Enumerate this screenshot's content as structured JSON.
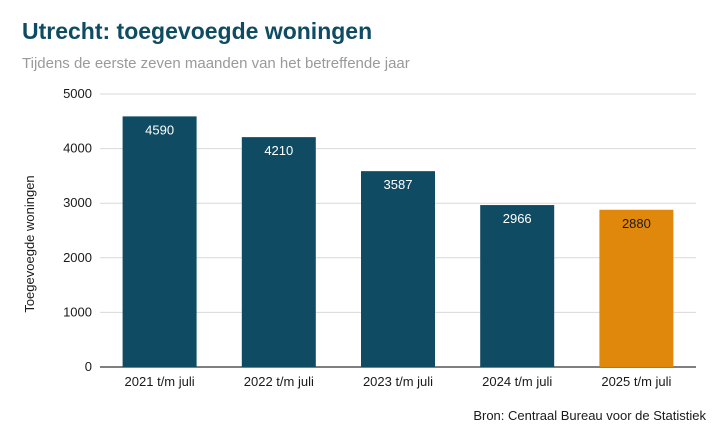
{
  "header": {
    "title": "Utrecht: toegevoegde woningen",
    "subtitle": "Tijdens de eerste zeven maanden van het betreffende jaar"
  },
  "footer": {
    "source": "Bron: Centraal Bureau voor de Statistiek"
  },
  "chart_data": {
    "type": "bar",
    "title": "Utrecht: toegevoegde woningen",
    "subtitle": "Tijdens de eerste zeven maanden van het betreffende jaar",
    "xlabel": "",
    "ylabel": "Toegevoegde woningen",
    "categories": [
      "2021 t/m juli",
      "2022 t/m juli",
      "2023 t/m juli",
      "2024 t/m juli",
      "2025 t/m juli"
    ],
    "values": [
      4590,
      4210,
      3587,
      2966,
      2880
    ],
    "data_labels": [
      "4590",
      "4210",
      "3587",
      "2966",
      "2880"
    ],
    "bar_colors": [
      "#0f4c63",
      "#0f4c63",
      "#0f4c63",
      "#0f4c63",
      "#e0880b"
    ],
    "ylim": [
      0,
      5000
    ],
    "yticks": [
      0,
      1000,
      2000,
      3000,
      4000,
      5000
    ],
    "grid": true,
    "legend": "none",
    "colors": {
      "label_on_dark": "#ffffff",
      "label_on_accent": "#1a1a1a",
      "grid": "#d9d9d9",
      "axis": "#333333",
      "tick_text": "#1a1a1a"
    }
  }
}
